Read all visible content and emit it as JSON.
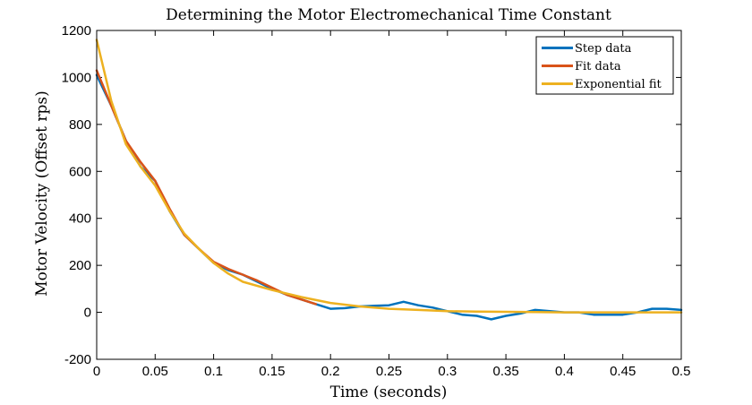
{
  "chart_data": {
    "type": "line",
    "title": "Determining the Motor Electromechanical Time Constant",
    "xlabel": "Time (seconds)",
    "ylabel": "Motor Velocity (Offset rps)",
    "xlim": [
      0,
      0.5
    ],
    "ylim": [
      -200,
      1200
    ],
    "xticks": [
      "0",
      "0.05",
      "0.1",
      "0.15",
      "0.2",
      "0.25",
      "0.3",
      "0.35",
      "0.4",
      "0.45",
      "0.5"
    ],
    "yticks": [
      "-200",
      "0",
      "200",
      "400",
      "600",
      "800",
      "1000",
      "1200"
    ],
    "grid": false,
    "legend_position": "top-right",
    "series": [
      {
        "name": "Step data",
        "color": "#0072BD",
        "x": [
          0,
          0.0125,
          0.025,
          0.0375,
          0.05,
          0.0625,
          0.075,
          0.0875,
          0.1,
          0.1125,
          0.125,
          0.1375,
          0.15,
          0.1625,
          0.175,
          0.1875,
          0.2,
          0.2125,
          0.225,
          0.2375,
          0.25,
          0.2625,
          0.275,
          0.2875,
          0.3,
          0.3125,
          0.325,
          0.3375,
          0.35,
          0.3625,
          0.375,
          0.3875,
          0.4,
          0.4125,
          0.425,
          0.4375,
          0.45,
          0.4625,
          0.475,
          0.4875,
          0.5
        ],
        "y": [
          1010,
          880,
          730,
          620,
          560,
          430,
          330,
          270,
          210,
          180,
          160,
          130,
          100,
          75,
          55,
          35,
          15,
          18,
          25,
          28,
          30,
          45,
          30,
          20,
          5,
          -10,
          -15,
          -30,
          -15,
          -5,
          10,
          5,
          0,
          0,
          -10,
          -10,
          -10,
          0,
          15,
          15,
          10
        ],
        "visible_points": [
          [
            0,
            1010
          ],
          [
            0.0125,
            880
          ],
          [
            0.025,
            730
          ],
          [
            0.0375,
            620
          ],
          [
            0.05,
            560
          ],
          [
            0.0625,
            430
          ],
          [
            0.075,
            330
          ],
          [
            0.0875,
            270
          ],
          [
            0.1,
            210
          ],
          [
            0.1125,
            180
          ],
          [
            0.125,
            160
          ],
          [
            0.1375,
            130
          ],
          [
            0.15,
            100
          ],
          [
            0.1625,
            75
          ],
          [
            0.175,
            55
          ],
          [
            0.1875,
            35
          ],
          [
            0.2,
            15
          ],
          [
            0.2125,
            18
          ],
          [
            0.225,
            25
          ],
          [
            0.2375,
            28
          ],
          [
            0.25,
            30
          ],
          [
            0.2625,
            45
          ],
          [
            0.275,
            30
          ],
          [
            0.2875,
            20
          ],
          [
            0.3,
            5
          ],
          [
            0.3125,
            -10
          ],
          [
            0.325,
            -15
          ],
          [
            0.3375,
            -30
          ],
          [
            0.35,
            -15
          ],
          [
            0.3625,
            -5
          ],
          [
            0.375,
            10
          ],
          [
            0.3875,
            5
          ],
          [
            0.4,
            0
          ],
          [
            0.4125,
            0
          ],
          [
            0.425,
            -10
          ],
          [
            0.4375,
            -10
          ],
          [
            0.45,
            -10
          ],
          [
            0.4625,
            0
          ],
          [
            0.475,
            15
          ],
          [
            0.4875,
            15
          ],
          [
            0.5,
            10
          ]
        ]
      },
      {
        "name": "Fit data",
        "color": "#D95319",
        "x": [
          0,
          0.0125,
          0.025,
          0.0375,
          0.05,
          0.0625,
          0.075,
          0.0875,
          0.1,
          0.1125,
          0.125,
          0.1375,
          0.15,
          0.1625,
          0.175,
          0.1875
        ],
        "y": [
          1030,
          880,
          730,
          640,
          560,
          440,
          330,
          270,
          215,
          185,
          160,
          135,
          105,
          75,
          55,
          35
        ]
      },
      {
        "name": "Exponential fit",
        "color": "#EDB120",
        "x": [
          0,
          0.0125,
          0.025,
          0.0375,
          0.05,
          0.0625,
          0.075,
          0.0875,
          0.1,
          0.1125,
          0.125,
          0.15,
          0.175,
          0.2,
          0.225,
          0.25,
          0.275,
          0.3,
          0.325,
          0.35,
          0.375,
          0.4,
          0.425,
          0.45,
          0.475,
          0.5
        ],
        "y": [
          1160,
          900,
          715,
          620,
          540,
          430,
          335,
          270,
          210,
          165,
          130,
          95,
          65,
          40,
          25,
          15,
          10,
          5,
          3,
          2,
          1,
          0,
          0,
          0,
          0,
          0
        ]
      }
    ]
  }
}
